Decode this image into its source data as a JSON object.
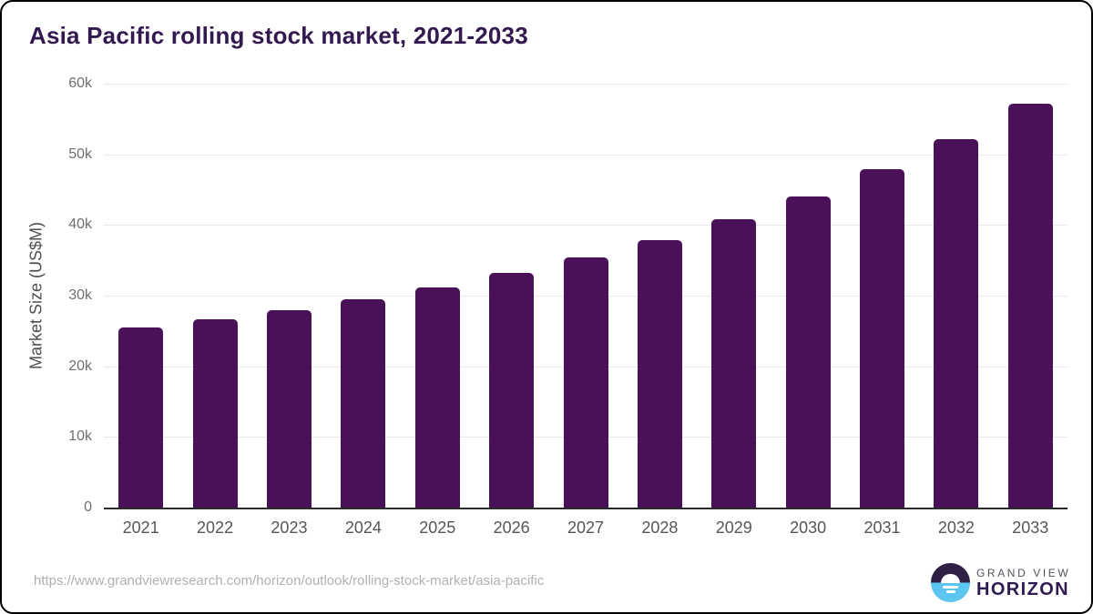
{
  "page": {
    "title": "Asia Pacific rolling stock market, 2021-2033"
  },
  "chart_data": {
    "type": "bar",
    "title": "Asia Pacific rolling stock market, 2021-2033",
    "categories": [
      "2021",
      "2022",
      "2023",
      "2024",
      "2025",
      "2026",
      "2027",
      "2028",
      "2029",
      "2030",
      "2031",
      "2032",
      "2033"
    ],
    "values": [
      25500,
      26700,
      28000,
      29500,
      31100,
      33200,
      35400,
      37800,
      40800,
      44000,
      47900,
      52200,
      57200
    ],
    "xlabel": "",
    "ylabel": "Market Size (US$M)",
    "ylim": [
      0,
      60000
    ],
    "y_ticks": [
      0,
      10000,
      20000,
      30000,
      40000,
      50000,
      60000
    ],
    "y_tick_labels": [
      "0",
      "10k",
      "20k",
      "30k",
      "40k",
      "50k",
      "60k"
    ],
    "grid": true,
    "legend": "none",
    "bar_color": "#4a1158"
  },
  "footer": {
    "source_url": "https://www.grandviewresearch.com/horizon/outlook/rolling-stock-market/asia-pacific",
    "logo": {
      "top_text": "GRAND VIEW",
      "bottom_text": "HORIZON"
    }
  },
  "colors": {
    "bar": "#4a1158",
    "title": "#32194f",
    "gridline": "#e9e9e9",
    "axis_line": "#2b2b2b",
    "y_tick": "#6e6f72",
    "x_tick": "#55565a",
    "url_text": "#b1b1b1",
    "logo_purple": "#2e2145",
    "logo_blue": "#5cc6f1"
  }
}
